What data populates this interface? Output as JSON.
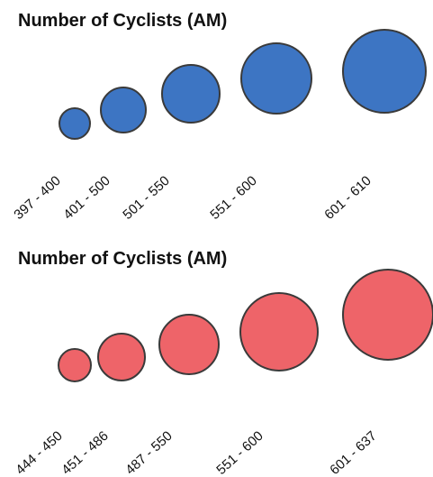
{
  "legends": [
    {
      "title": "Number of Cyclists (AM)",
      "fill_color": "#3d75c3",
      "stroke_color": "#3a3a3a",
      "classes": [
        {
          "label": "397 - 400"
        },
        {
          "label": "401 - 500"
        },
        {
          "label": "501 - 550"
        },
        {
          "label": "551 - 600"
        },
        {
          "label": "601 - 610"
        }
      ]
    },
    {
      "title": "Number of Cyclists (AM)",
      "fill_color": "#ee6469",
      "stroke_color": "#3a3a3a",
      "classes": [
        {
          "label": "444 - 450"
        },
        {
          "label": "451 - 486"
        },
        {
          "label": "487 - 550"
        },
        {
          "label": "551 - 600"
        },
        {
          "label": "601 - 637"
        }
      ]
    }
  ]
}
